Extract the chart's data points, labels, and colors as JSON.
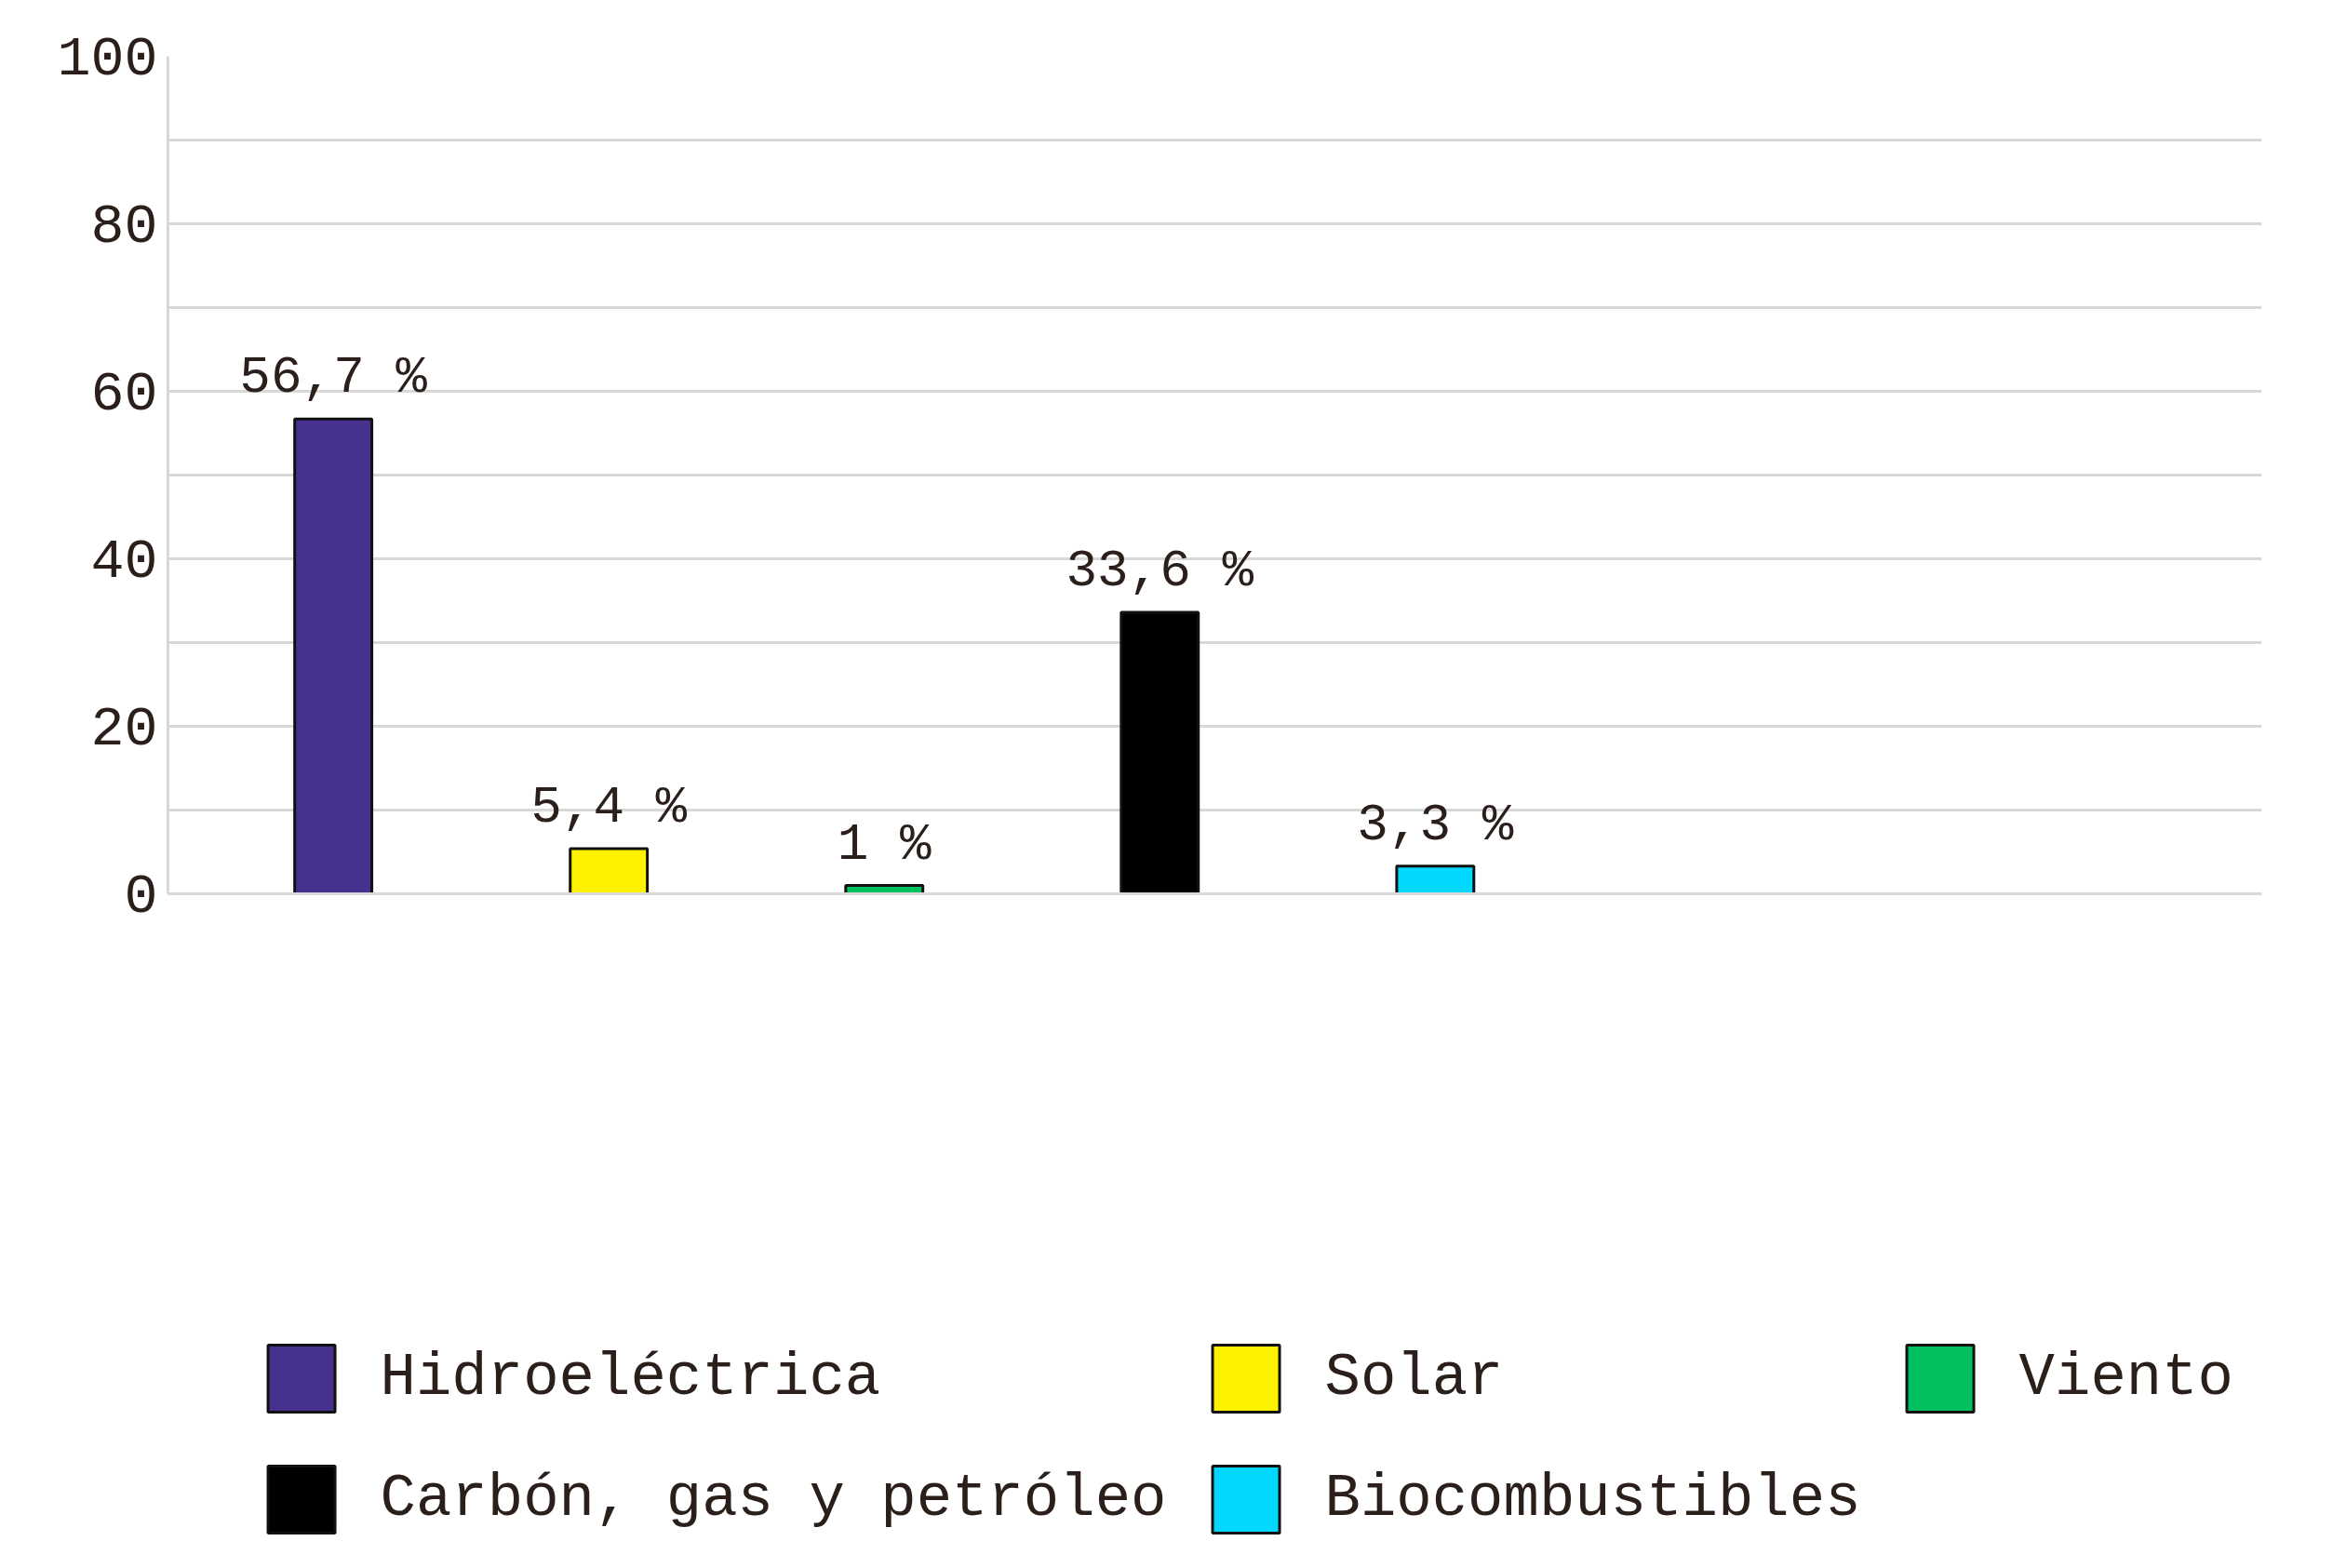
{
  "chart_data": {
    "type": "bar",
    "stacked": true,
    "categories": [
      null,
      null,
      null,
      null,
      null
    ],
    "series": [
      {
        "name": "Hidroeléctrica",
        "color": "#47318f",
        "values": [
          56.7,
          null,
          null,
          null,
          null
        ],
        "value_labels": [
          "56,7 %",
          null,
          null,
          null,
          null
        ]
      },
      {
        "name": "Solar",
        "color": "#fff200",
        "values": [
          null,
          5.4,
          null,
          null,
          null
        ],
        "value_labels": [
          null,
          "5,4 %",
          null,
          null,
          null
        ]
      },
      {
        "name": "Viento",
        "color": "#00c060",
        "values": [
          null,
          null,
          1,
          null,
          null
        ],
        "value_labels": [
          null,
          null,
          "1 %",
          null,
          null
        ]
      },
      {
        "name": "Carbón, gas y petróleo",
        "color": "#000000",
        "values": [
          null,
          null,
          null,
          33.6,
          null
        ],
        "value_labels": [
          null,
          null,
          null,
          "33,6 %",
          null
        ]
      },
      {
        "name": "Biocombustibles",
        "color": "#00d8ff",
        "values": [
          null,
          null,
          null,
          null,
          3.3
        ],
        "value_labels": [
          null,
          null,
          null,
          null,
          "3,3 %"
        ]
      }
    ],
    "ylim": [
      0,
      100
    ],
    "yticks": [
      0,
      {
        "value": 10,
        "label": null
      },
      20,
      {
        "value": 30,
        "label": null
      },
      40,
      {
        "value": 50,
        "label": null
      },
      60,
      {
        "value": 70,
        "label": null
      },
      80,
      {
        "value": 90,
        "label": null
      },
      100
    ],
    "grid": "y",
    "tick_labels": "y",
    "legend": "bottom"
  }
}
